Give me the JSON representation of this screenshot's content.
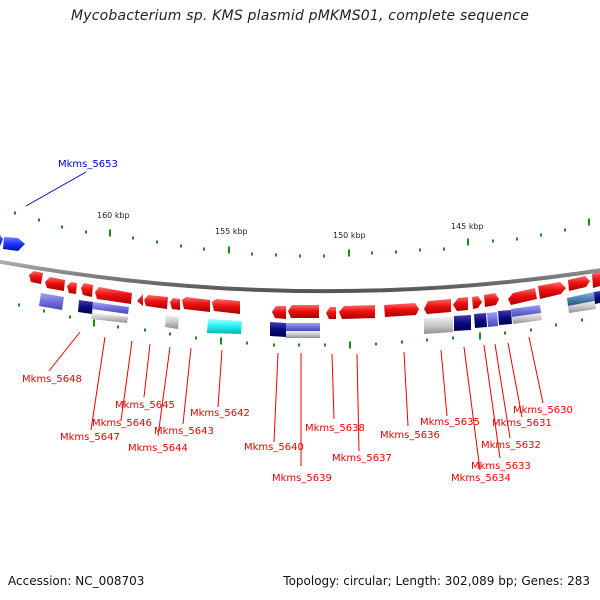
{
  "title": "Mycobacterium sp. KMS plasmid pMKMS01, complete sequence",
  "footer": {
    "accession": "Accession: NC_008703",
    "summary": "Topology: circular; Length: 302,089 bp; Genes: 283"
  },
  "kbp_markers": [
    "160 kbp",
    "155 kbp",
    "150 kbp",
    "145 kbp"
  ],
  "gene_labels": [
    {
      "id": "Mkms_5653",
      "color": "#0000cc"
    },
    {
      "id": "Mkms_5648",
      "color": "#ee0000"
    },
    {
      "id": "Mkms_5647",
      "color": "#ee0000"
    },
    {
      "id": "Mkms_5646",
      "color": "#ee0000"
    },
    {
      "id": "Mkms_5645",
      "color": "#ee0000"
    },
    {
      "id": "Mkms_5644",
      "color": "#ee0000"
    },
    {
      "id": "Mkms_5643",
      "color": "#ee0000"
    },
    {
      "id": "Mkms_5642",
      "color": "#ee0000"
    },
    {
      "id": "Mkms_5640",
      "color": "#ee0000"
    },
    {
      "id": "Mkms_5639",
      "color": "#ee0000"
    },
    {
      "id": "Mkms_5638",
      "color": "#ee0000"
    },
    {
      "id": "Mkms_5637",
      "color": "#ee0000"
    },
    {
      "id": "Mkms_5636",
      "color": "#ee0000"
    },
    {
      "id": "Mkms_5635",
      "color": "#ee0000"
    },
    {
      "id": "Mkms_5634",
      "color": "#ee0000"
    },
    {
      "id": "Mkms_5633",
      "color": "#ee0000"
    },
    {
      "id": "Mkms_5632",
      "color": "#ee0000"
    },
    {
      "id": "Mkms_5631",
      "color": "#ee0000"
    },
    {
      "id": "Mkms_5630",
      "color": "#ee0000"
    }
  ],
  "colors": {
    "cds_forward": "#ee1111",
    "cds_other_strand": "#1a33ff",
    "backbone": "#888888",
    "tick": "#1a8a1a",
    "navy_block": "#0a0a80",
    "purple_block": "#7070dd",
    "cyan_block": "#22eeee",
    "grey_block": "#c8c8c8",
    "steel_block": "#4a7fb0"
  }
}
